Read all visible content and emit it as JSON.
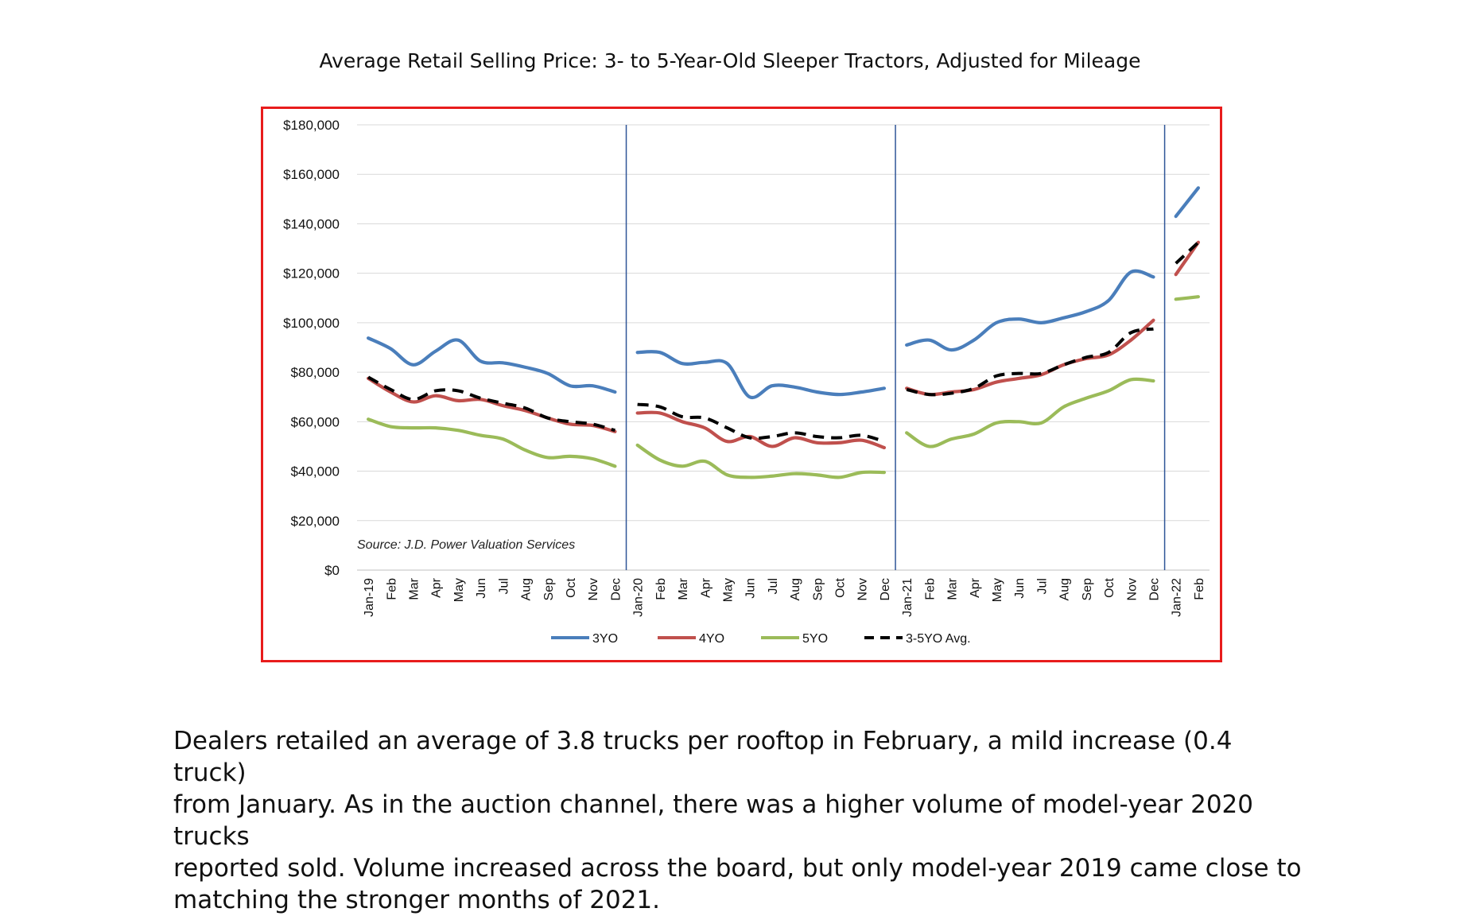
{
  "page": {
    "title": "Average Retail Selling Price: 3- to 5-Year-Old Sleeper Tractors, Adjusted for Mileage",
    "paragraph_lines": [
      "Dealers retailed an average of 3.8 trucks per rooftop in February, a mild increase (0.4 truck)",
      "from January. As in the auction channel, there was a higher volume of model-year 2020 trucks",
      "reported sold. Volume increased across the board, but only model-year 2019 came close to",
      "matching the stronger months of 2021."
    ]
  },
  "chart_data": {
    "type": "line",
    "title": "",
    "xlabel": "",
    "ylabel": "",
    "source_note": "Source: J.D. Power Valuation Services",
    "ylim": [
      0,
      180000
    ],
    "y_ticks": [
      {
        "value": 0,
        "label": "$0"
      },
      {
        "value": 20000,
        "label": "$20,000"
      },
      {
        "value": 40000,
        "label": "$40,000"
      },
      {
        "value": 60000,
        "label": "$60,000"
      },
      {
        "value": 80000,
        "label": "$80,000"
      },
      {
        "value": 100000,
        "label": "$100,000"
      },
      {
        "value": 120000,
        "label": "$120,000"
      },
      {
        "value": 140000,
        "label": "$140,000"
      },
      {
        "value": 160000,
        "label": "$160,000"
      },
      {
        "value": 180000,
        "label": "$180,000"
      }
    ],
    "grid": true,
    "legend_position": "bottom",
    "categories": [
      "Jan-19",
      "Feb",
      "Mar",
      "Apr",
      "May",
      "Jun",
      "Jul",
      "Aug",
      "Sep",
      "Oct",
      "Nov",
      "Dec",
      "Jan-20",
      "Feb",
      "Mar",
      "Apr",
      "May",
      "Jun",
      "Jul",
      "Aug",
      "Sep",
      "Oct",
      "Nov",
      "Dec",
      "Jan-21",
      "Feb",
      "Mar",
      "Apr",
      "May",
      "Jun",
      "Jul",
      "Aug",
      "Sep",
      "Oct",
      "Nov",
      "Dec",
      "Jan-22",
      "Feb"
    ],
    "year_separators_after": [
      "Dec",
      "Dec",
      "Dec"
    ],
    "series": [
      {
        "name": "3YO",
        "color": "#4a7ebb",
        "dash": false,
        "values": [
          93800,
          89500,
          83000,
          88500,
          93000,
          84500,
          83800,
          82000,
          79500,
          74500,
          74500,
          72000,
          88000,
          88000,
          83500,
          84000,
          83500,
          70000,
          74500,
          74000,
          72000,
          71000,
          72000,
          73500,
          91000,
          93000,
          89000,
          93000,
          100000,
          101500,
          100000,
          102000,
          104500,
          109000,
          120500,
          118500,
          143000,
          154500
        ]
      },
      {
        "name": "4YO",
        "color": "#c0504d",
        "dash": false,
        "values": [
          77500,
          72000,
          68000,
          70500,
          68500,
          69000,
          66500,
          64500,
          61500,
          59000,
          58500,
          56000,
          63500,
          63500,
          60000,
          57500,
          52000,
          54000,
          50000,
          53500,
          51500,
          51500,
          52500,
          49500,
          73500,
          71000,
          72000,
          73000,
          76000,
          77500,
          79000,
          83000,
          85500,
          87000,
          93000,
          101000,
          119500,
          132500
        ]
      },
      {
        "name": "5YO",
        "color": "#9bbb59",
        "dash": false,
        "values": [
          61000,
          58000,
          57500,
          57500,
          56500,
          54500,
          53000,
          48500,
          45500,
          46000,
          45000,
          42000,
          50500,
          44500,
          42000,
          44000,
          38500,
          37500,
          38000,
          39000,
          38500,
          37500,
          39500,
          39500,
          55500,
          50000,
          53000,
          55000,
          59500,
          60000,
          59500,
          66000,
          69500,
          72500,
          77000,
          76500,
          109500,
          110500
        ]
      },
      {
        "name": "3-5YO Avg.",
        "color": "#000000",
        "dash": true,
        "values": [
          78000,
          73000,
          69000,
          72500,
          72500,
          69500,
          67500,
          65500,
          61500,
          60000,
          59000,
          56500,
          67000,
          66000,
          62000,
          61500,
          57500,
          53500,
          54000,
          55500,
          54000,
          53500,
          54500,
          52000,
          73000,
          71000,
          71500,
          73500,
          78500,
          79500,
          79500,
          83000,
          86000,
          88000,
          96000,
          97500,
          124000,
          132500
        ]
      }
    ]
  }
}
